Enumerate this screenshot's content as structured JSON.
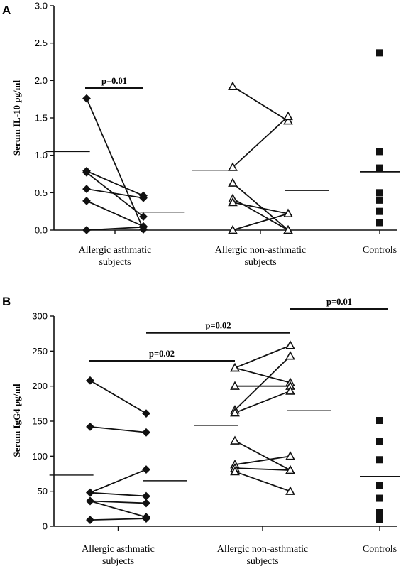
{
  "chart_data": [
    {
      "panel": "A",
      "type": "scatter",
      "ylabel": "Serum IL-10 pg/ml",
      "ylim": [
        0,
        3.0
      ],
      "yticks": [
        "0.0",
        "0.5",
        "1.0",
        "1.5",
        "2.0",
        "2.5",
        "3.0"
      ],
      "categories": [
        [
          "Allergic asthmatic",
          "subjects"
        ],
        [
          "Allergic non-asthmatic",
          "subjects"
        ],
        [
          "Controls"
        ]
      ],
      "groups": [
        {
          "marker": "diamond",
          "pairs": [
            [
              1.76,
              0.01
            ],
            [
              0.79,
              0.46
            ],
            [
              0.77,
              0.18
            ],
            [
              0.55,
              0.43
            ],
            [
              0.39,
              0.05
            ],
            [
              0.0,
              0.04
            ]
          ],
          "medians": [
            1.05,
            0.24
          ]
        },
        {
          "marker": "triangle-open",
          "pairs": [
            [
              1.92,
              1.46
            ],
            [
              0.84,
              1.52
            ],
            [
              0.63,
              0.0
            ],
            [
              0.42,
              0.0
            ],
            [
              0.37,
              0.22
            ],
            [
              0.0,
              0.22
            ]
          ],
          "medians": [
            0.8,
            0.53
          ]
        },
        {
          "marker": "square",
          "values": [
            2.37,
            1.05,
            0.83,
            0.5,
            0.4,
            0.25,
            0.1
          ],
          "median": 0.78
        }
      ],
      "significance": [
        {
          "label": "p=0.01",
          "y": 1.9,
          "from": [
            0,
            0
          ],
          "to": [
            0,
            1
          ]
        }
      ]
    },
    {
      "panel": "B",
      "type": "scatter",
      "ylabel": "Serum IgG4 pg/ml",
      "ylim": [
        0,
        300
      ],
      "yticks": [
        "0",
        "50",
        "100",
        "150",
        "200",
        "250",
        "300"
      ],
      "categories": [
        [
          "Allergic asthmatic",
          "subjects"
        ],
        [
          "Allergic non-asthmatic",
          "subjects"
        ],
        [
          "Controls"
        ]
      ],
      "groups": [
        {
          "marker": "diamond",
          "pairs": [
            [
              208,
              161
            ],
            [
              142,
              134
            ],
            [
              48,
              81
            ],
            [
              48,
              43
            ],
            [
              36,
              33
            ],
            [
              36,
              13
            ],
            [
              9,
              11
            ]
          ],
          "medians": [
            73,
            65
          ]
        },
        {
          "marker": "triangle-open",
          "pairs": [
            [
              226,
              258
            ],
            [
              226,
              205
            ],
            [
              200,
              200
            ],
            [
              166,
              243
            ],
            [
              162,
              193
            ],
            [
              122,
              80
            ],
            [
              88,
              100
            ],
            [
              83,
              80
            ],
            [
              78,
              50
            ]
          ],
          "medians": [
            144,
            165
          ]
        },
        {
          "marker": "square",
          "values": [
            151,
            121,
            95,
            58,
            40,
            20,
            10
          ],
          "median": 71
        }
      ],
      "significance": [
        {
          "label": "p=0.02",
          "y": 236,
          "from": [
            0,
            0
          ],
          "to": [
            1,
            0
          ]
        },
        {
          "label": "p=0.02",
          "y": 276,
          "from": [
            0,
            1
          ],
          "to": [
            1,
            1
          ]
        },
        {
          "label": "p=0.01",
          "y": 310,
          "from": [
            1,
            1
          ],
          "to": [
            2,
            0
          ]
        }
      ]
    }
  ]
}
